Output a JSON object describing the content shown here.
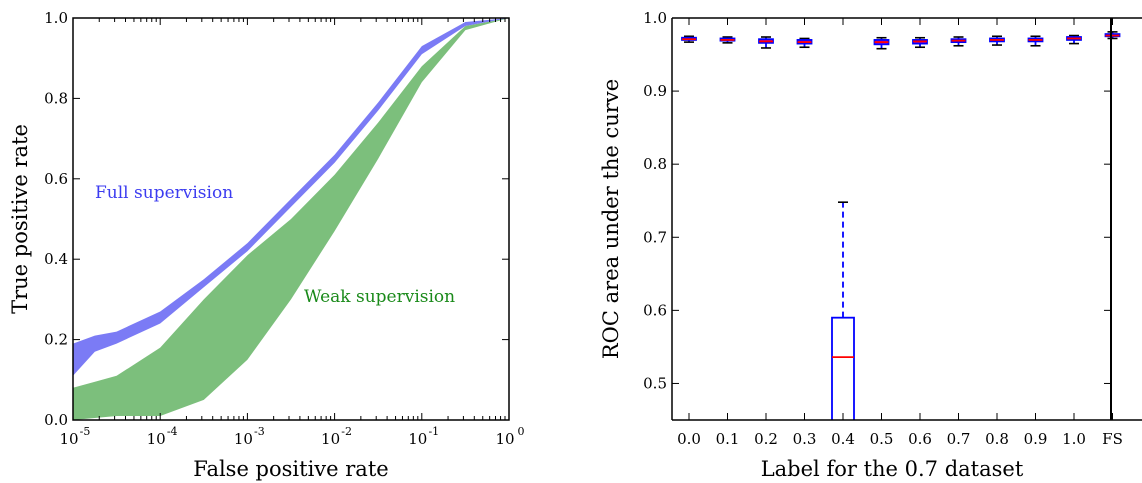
{
  "chart_data": [
    {
      "type": "area",
      "xlabel": "False positive rate",
      "ylabel": "True positive rate",
      "xscale": "log",
      "xlim": [
        1e-05,
        1
      ],
      "ylim": [
        0,
        1
      ],
      "x_ticks": [
        "10",
        "10",
        "10",
        "10",
        "10",
        "10"
      ],
      "x_tick_exponents": [
        "-5",
        "-4",
        "-3",
        "-2",
        "-1",
        "0"
      ],
      "y_ticks": [
        "0.0",
        "0.2",
        "0.4",
        "0.6",
        "0.8",
        "1.0"
      ],
      "grid": false,
      "series": [
        {
          "name": "Full supervision",
          "color": "#7b7bf5",
          "x": [
            1e-05,
            1.78e-05,
            3.16e-05,
            0.0001,
            0.000316,
            0.001,
            0.00316,
            0.01,
            0.0316,
            0.1,
            0.316,
            1
          ],
          "lower": [
            0.11,
            0.17,
            0.19,
            0.24,
            0.33,
            0.42,
            0.53,
            0.64,
            0.77,
            0.91,
            0.98,
            1.0
          ],
          "upper": [
            0.19,
            0.21,
            0.22,
            0.27,
            0.35,
            0.44,
            0.55,
            0.66,
            0.79,
            0.93,
            0.99,
            1.0
          ]
        },
        {
          "name": "Weak supervision",
          "color": "#7cbf7c",
          "x": [
            1e-05,
            3.16e-05,
            0.0001,
            0.000316,
            0.001,
            0.00316,
            0.01,
            0.0316,
            0.1,
            0.316,
            1
          ],
          "lower": [
            0.0,
            0.01,
            0.01,
            0.05,
            0.15,
            0.3,
            0.47,
            0.65,
            0.84,
            0.97,
            1.0
          ],
          "upper": [
            0.08,
            0.11,
            0.18,
            0.3,
            0.41,
            0.5,
            0.61,
            0.74,
            0.88,
            0.98,
            1.0
          ]
        }
      ]
    },
    {
      "type": "box",
      "xlabel": "Label for the 0.7 dataset",
      "ylabel": "ROC area under the curve",
      "ylim": [
        0.45,
        1.0
      ],
      "categories": [
        "0.0",
        "0.1",
        "0.2",
        "0.3",
        "0.4",
        "0.5",
        "0.6",
        "0.7",
        "0.8",
        "0.9",
        "1.0",
        "FS"
      ],
      "y_ticks": [
        "0.5",
        "0.6",
        "0.7",
        "0.8",
        "0.9",
        "1.0"
      ],
      "grid": false,
      "separator_after": "1.0",
      "boxes": [
        {
          "label": "0.0",
          "whislo": 0.967,
          "q1": 0.97,
          "med": 0.971,
          "q3": 0.973,
          "whishi": 0.975
        },
        {
          "label": "0.1",
          "whislo": 0.966,
          "q1": 0.969,
          "med": 0.97,
          "q3": 0.972,
          "whishi": 0.974
        },
        {
          "label": "0.2",
          "whislo": 0.959,
          "q1": 0.966,
          "med": 0.968,
          "q3": 0.971,
          "whishi": 0.974
        },
        {
          "label": "0.3",
          "whislo": 0.96,
          "q1": 0.965,
          "med": 0.967,
          "q3": 0.97,
          "whishi": 0.972
        },
        {
          "label": "0.4",
          "whislo": 0.4,
          "q1": 0.44,
          "med": 0.536,
          "q3": 0.59,
          "whishi": 0.748
        },
        {
          "label": "0.5",
          "whislo": 0.958,
          "q1": 0.964,
          "med": 0.967,
          "q3": 0.97,
          "whishi": 0.973
        },
        {
          "label": "0.6",
          "whislo": 0.96,
          "q1": 0.965,
          "med": 0.968,
          "q3": 0.97,
          "whishi": 0.973
        },
        {
          "label": "0.7",
          "whislo": 0.962,
          "q1": 0.967,
          "med": 0.969,
          "q3": 0.971,
          "whishi": 0.974
        },
        {
          "label": "0.8",
          "whislo": 0.963,
          "q1": 0.968,
          "med": 0.97,
          "q3": 0.972,
          "whishi": 0.975
        },
        {
          "label": "0.9",
          "whislo": 0.962,
          "q1": 0.968,
          "med": 0.97,
          "q3": 0.972,
          "whishi": 0.975
        },
        {
          "label": "1.0",
          "whislo": 0.965,
          "q1": 0.97,
          "med": 0.972,
          "q3": 0.974,
          "whishi": 0.976
        },
        {
          "label": "FS",
          "whislo": 0.972,
          "q1": 0.975,
          "med": 0.976,
          "q3": 0.978,
          "whishi": 0.981
        }
      ],
      "colors": {
        "box": "#0000ff",
        "median": "#ff0000",
        "fill": "#bf00bf"
      }
    }
  ]
}
